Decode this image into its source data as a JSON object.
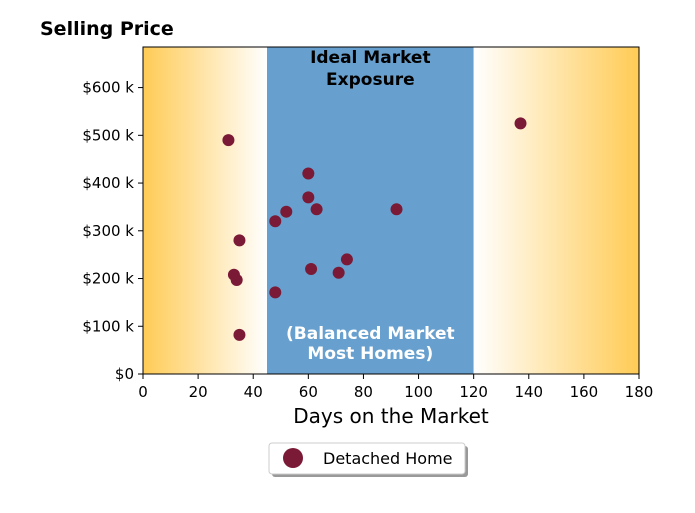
{
  "chart_data": {
    "type": "scatter",
    "title": "Selling Price",
    "xlabel": "Days on the Market",
    "ylabel": "",
    "xlim": [
      0,
      180
    ],
    "ylim": [
      0,
      685000
    ],
    "x_ticks": [
      0,
      20,
      40,
      60,
      80,
      100,
      120,
      140,
      160,
      180
    ],
    "x_tick_labels": [
      "0",
      "20",
      "40",
      "60",
      "80",
      "100",
      "120",
      "140",
      "160",
      "180"
    ],
    "y_ticks": [
      0,
      100000,
      200000,
      300000,
      400000,
      500000,
      600000
    ],
    "y_tick_labels": [
      "$0",
      "$100 k",
      "$200 k",
      "$300 k",
      "$400 k",
      "$500 k",
      "$600 k"
    ],
    "grid": false,
    "bands": [
      {
        "from": 0,
        "to": 45,
        "style": "gradient",
        "color": "#FFCB55",
        "fade_to": "#FFFFFF",
        "direction": "fade-right"
      },
      {
        "from": 45,
        "to": 120,
        "style": "solid",
        "color": "#67A0CE"
      },
      {
        "from": 120,
        "to": 180,
        "style": "gradient",
        "color": "#FFCB55",
        "fade_to": "#FFFFFF",
        "direction": "fade-left"
      }
    ],
    "annotations": [
      {
        "lines": [
          "Ideal Market",
          "Exposure"
        ],
        "color": "#000000"
      },
      {
        "lines": [
          "(Balanced Market",
          "Most Homes)"
        ],
        "color": "#FFFFFF"
      }
    ],
    "series": [
      {
        "name": "Detached Home",
        "color": "#7B1A36",
        "points": [
          {
            "x": 31,
            "y": 490000
          },
          {
            "x": 33,
            "y": 208000
          },
          {
            "x": 34,
            "y": 197000
          },
          {
            "x": 35,
            "y": 280000
          },
          {
            "x": 35,
            "y": 82000
          },
          {
            "x": 48,
            "y": 320000
          },
          {
            "x": 48,
            "y": 171000
          },
          {
            "x": 52,
            "y": 340000
          },
          {
            "x": 60,
            "y": 420000
          },
          {
            "x": 60,
            "y": 370000
          },
          {
            "x": 61,
            "y": 220000
          },
          {
            "x": 63,
            "y": 345000
          },
          {
            "x": 71,
            "y": 212000
          },
          {
            "x": 74,
            "y": 240000
          },
          {
            "x": 92,
            "y": 345000
          },
          {
            "x": 137,
            "y": 525000
          }
        ]
      }
    ],
    "legend": {
      "position": "bottom-center",
      "entries": [
        "Detached Home"
      ]
    }
  }
}
